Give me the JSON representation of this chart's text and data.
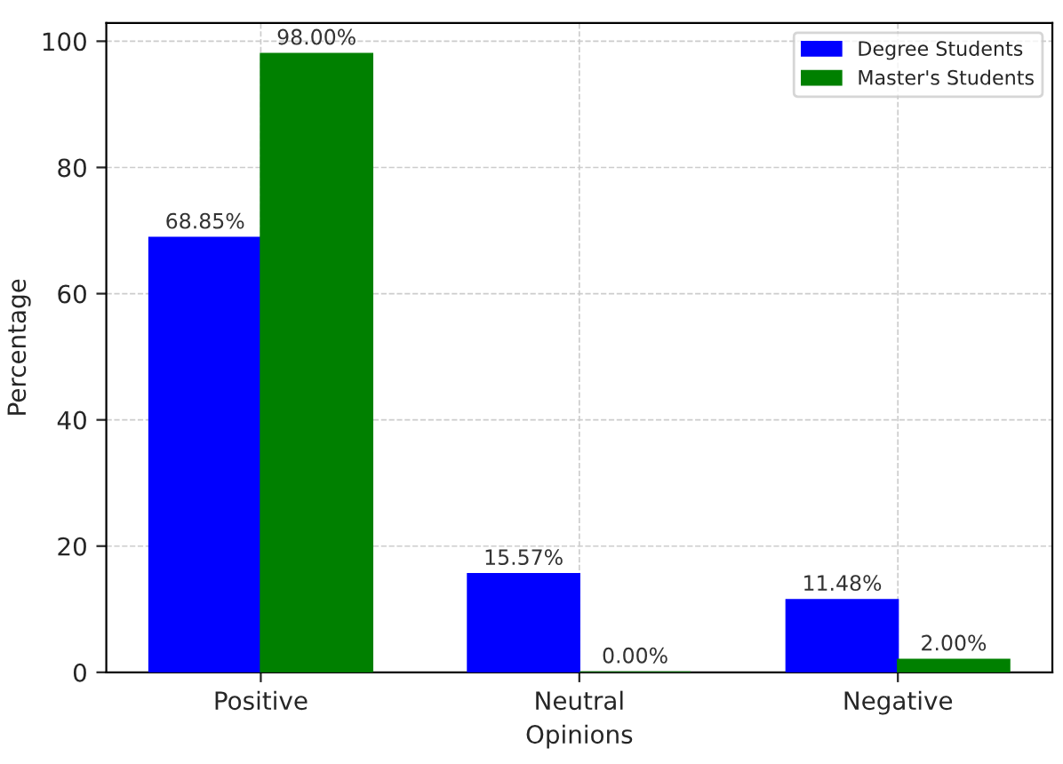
{
  "chart_data": {
    "type": "bar",
    "xlabel": "Opinions",
    "ylabel": "Percentage",
    "categories": [
      "Positive",
      "Neutral",
      "Negative"
    ],
    "series": [
      {
        "name": "Degree Students",
        "color": "#0000ff",
        "values": [
          68.85,
          15.57,
          11.48
        ],
        "value_labels": [
          "68.85%",
          "15.57%",
          "11.48%"
        ]
      },
      {
        "name": "Master's Students",
        "color": "#008000",
        "values": [
          98.0,
          0.0,
          2.0
        ],
        "value_labels": [
          "98.00%",
          "0.00%",
          "2.00%"
        ]
      }
    ],
    "ylim": [
      0,
      102.9
    ],
    "yticks": [
      0,
      20,
      40,
      60,
      80,
      100
    ],
    "grid": true,
    "legend": "top right"
  }
}
